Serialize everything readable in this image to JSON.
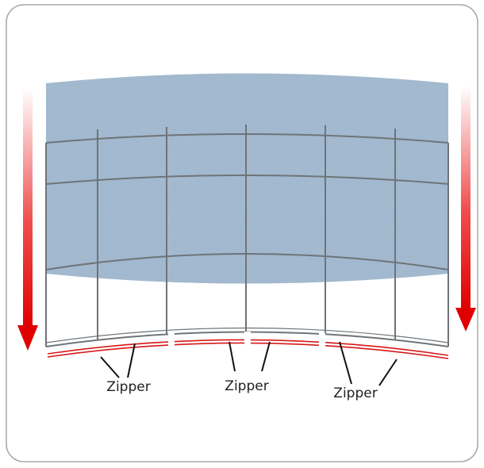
{
  "callouts": [
    {
      "label": "Zipper"
    },
    {
      "label": "Zipper"
    },
    {
      "label": "Zipper"
    }
  ]
}
